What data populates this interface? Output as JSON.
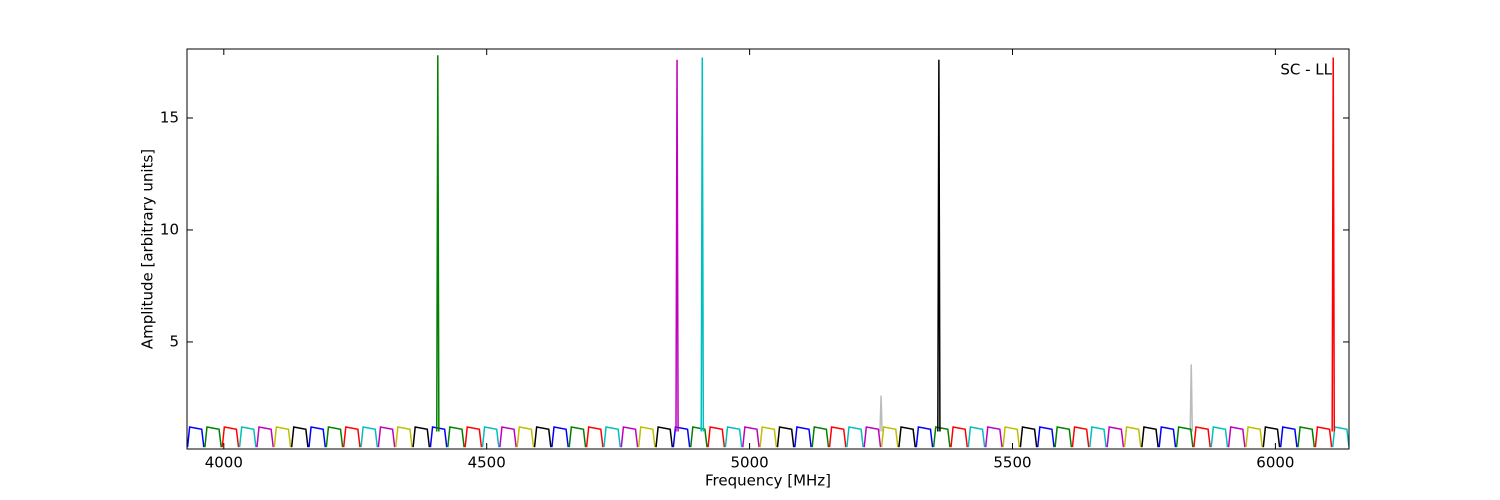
{
  "chart_data": {
    "type": "line",
    "xlabel": "Frequency [MHz]",
    "ylabel": "Amplitude [arbitrary units]",
    "annotation": "SC - LL",
    "xlim": [
      3930,
      6140
    ],
    "ylim": [
      0.22,
      18.08
    ],
    "xticks": [
      4000,
      4500,
      5000,
      5500,
      6000
    ],
    "yticks": [
      5,
      10,
      15
    ],
    "grid": false,
    "series": [
      {
        "color": "#bbbbbb",
        "x": [
          5248,
          5250,
          5252,
          5253,
          5838,
          5840,
          5842
        ],
        "values": [
          1.0,
          2.6,
          1.0,
          null,
          1.0,
          4.0,
          1.0
        ]
      },
      {
        "color": "#0000ff",
        "x": [
          3931,
          3935,
          3958,
          3962,
          3963,
          4162,
          4166,
          4189,
          4193,
          4194,
          4393,
          4397,
          4420,
          4424,
          4425,
          4624,
          4628,
          4651,
          4655,
          4656,
          4855,
          4859,
          4882,
          4886,
          4887,
          5086,
          5090,
          5113,
          5117,
          5118,
          5317,
          5321,
          5344,
          5348,
          5349,
          5548,
          5552,
          5575,
          5579,
          5580,
          5779,
          5783,
          5806,
          5810,
          5811,
          6010,
          6014,
          6037,
          6041
        ],
        "values": [
          0.3,
          1.2,
          1.1,
          0.3,
          null,
          0.3,
          1.2,
          1.1,
          0.3,
          null,
          0.3,
          1.2,
          1.1,
          0.3,
          null,
          0.3,
          1.2,
          1.1,
          0.3,
          null,
          0.3,
          1.2,
          1.1,
          0.3,
          null,
          0.3,
          1.2,
          1.1,
          0.3,
          null,
          0.3,
          1.2,
          1.1,
          0.3,
          null,
          0.3,
          1.2,
          1.1,
          0.3,
          null,
          0.3,
          1.2,
          1.1,
          0.3,
          null,
          0.3,
          1.2,
          1.1,
          0.3
        ]
      },
      {
        "color": "#008000",
        "x": [
          3964,
          3968,
          3991,
          3995,
          3996,
          4195,
          4199,
          4222,
          4226,
          4227,
          4426,
          4430,
          4453,
          4457,
          4458,
          4657,
          4661,
          4684,
          4688,
          4689,
          4888,
          4892,
          4915,
          4919,
          4920,
          5119,
          5123,
          5146,
          5150,
          5151,
          5350,
          5354,
          5377,
          5381,
          5382,
          5581,
          5585,
          5608,
          5612,
          5613,
          5812,
          5816,
          5839,
          5843,
          5844,
          6043,
          6047,
          6070,
          6074
        ],
        "values": [
          0.3,
          1.2,
          1.1,
          0.3,
          null,
          0.3,
          1.2,
          1.1,
          0.3,
          null,
          0.3,
          1.2,
          1.1,
          0.3,
          null,
          0.3,
          1.2,
          1.1,
          0.3,
          null,
          0.3,
          1.2,
          1.1,
          0.3,
          null,
          0.3,
          1.2,
          1.1,
          0.3,
          null,
          0.3,
          1.2,
          1.1,
          0.3,
          null,
          0.3,
          1.2,
          1.1,
          0.3,
          null,
          0.3,
          1.2,
          1.1,
          0.3,
          null,
          0.3,
          1.2,
          1.1,
          0.3
        ]
      },
      {
        "color": "#ff0000",
        "x": [
          3997,
          4001,
          4024,
          4028,
          4029,
          4228,
          4232,
          4255,
          4259,
          4260,
          4459,
          4463,
          4486,
          4490,
          4491,
          4690,
          4694,
          4717,
          4721,
          4722,
          4921,
          4925,
          4948,
          4952,
          4953,
          5152,
          5156,
          5179,
          5183,
          5184,
          5383,
          5387,
          5410,
          5414,
          5415,
          5614,
          5618,
          5641,
          5645,
          5646,
          5845,
          5849,
          5872,
          5876,
          5877,
          6076,
          6080,
          6103,
          6107
        ],
        "values": [
          0.3,
          1.2,
          1.1,
          0.3,
          null,
          0.3,
          1.2,
          1.1,
          0.3,
          null,
          0.3,
          1.2,
          1.1,
          0.3,
          null,
          0.3,
          1.2,
          1.1,
          0.3,
          null,
          0.3,
          1.2,
          1.1,
          0.3,
          null,
          0.3,
          1.2,
          1.1,
          0.3,
          null,
          0.3,
          1.2,
          1.1,
          0.3,
          null,
          0.3,
          1.2,
          1.1,
          0.3,
          null,
          0.3,
          1.2,
          1.1,
          0.3,
          null,
          0.3,
          1.2,
          1.1,
          0.3
        ]
      },
      {
        "color": "#00bfbf",
        "x": [
          4030,
          4034,
          4057,
          4061,
          4062,
          4261,
          4265,
          4288,
          4292,
          4293,
          4492,
          4496,
          4519,
          4523,
          4524,
          4723,
          4727,
          4750,
          4754,
          4755,
          4954,
          4958,
          4981,
          4985,
          4986,
          5185,
          5189,
          5212,
          5216,
          5217,
          5416,
          5420,
          5443,
          5447,
          5448,
          5647,
          5651,
          5674,
          5678,
          5679,
          5878,
          5882,
          5905,
          5909,
          5910,
          6109,
          6113,
          6136,
          6140
        ],
        "values": [
          0.3,
          1.2,
          1.1,
          0.3,
          null,
          0.3,
          1.2,
          1.1,
          0.3,
          null,
          0.3,
          1.2,
          1.1,
          0.3,
          null,
          0.3,
          1.2,
          1.1,
          0.3,
          null,
          0.3,
          1.2,
          1.1,
          0.3,
          null,
          0.3,
          1.2,
          1.1,
          0.3,
          null,
          0.3,
          1.2,
          1.1,
          0.3,
          null,
          0.3,
          1.2,
          1.1,
          0.3,
          null,
          0.3,
          1.2,
          1.1,
          0.3,
          null,
          0.3,
          1.2,
          1.1,
          0.3
        ]
      },
      {
        "color": "#bf00bf",
        "x": [
          4063,
          4067,
          4090,
          4094,
          4095,
          4294,
          4298,
          4321,
          4325,
          4326,
          4525,
          4529,
          4552,
          4556,
          4557,
          4756,
          4760,
          4783,
          4787,
          4788,
          4987,
          4991,
          5014,
          5018,
          5019,
          5218,
          5222,
          5245,
          5249,
          5250,
          5449,
          5453,
          5476,
          5480,
          5481,
          5680,
          5684,
          5707,
          5711,
          5712,
          5911,
          5915,
          5938,
          5942
        ],
        "values": [
          0.3,
          1.2,
          1.1,
          0.3,
          null,
          0.3,
          1.2,
          1.1,
          0.3,
          null,
          0.3,
          1.2,
          1.1,
          0.3,
          null,
          0.3,
          1.2,
          1.1,
          0.3,
          null,
          0.3,
          1.2,
          1.1,
          0.3,
          null,
          0.3,
          1.2,
          1.1,
          0.3,
          null,
          0.3,
          1.2,
          1.1,
          0.3,
          null,
          0.3,
          1.2,
          1.1,
          0.3,
          null,
          0.3,
          1.2,
          1.1,
          0.3
        ]
      },
      {
        "color": "#bfbf00",
        "x": [
          4096,
          4100,
          4123,
          4127,
          4128,
          4327,
          4331,
          4354,
          4358,
          4359,
          4558,
          4562,
          4585,
          4589,
          4590,
          4789,
          4793,
          4816,
          4820,
          4821,
          5020,
          5024,
          5047,
          5051,
          5052,
          5251,
          5255,
          5278,
          5282,
          5283,
          5482,
          5486,
          5509,
          5513,
          5514,
          5713,
          5717,
          5740,
          5744,
          5745,
          5944,
          5948,
          5971,
          5975
        ],
        "values": [
          0.3,
          1.2,
          1.1,
          0.3,
          null,
          0.3,
          1.2,
          1.1,
          0.3,
          null,
          0.3,
          1.2,
          1.1,
          0.3,
          null,
          0.3,
          1.2,
          1.1,
          0.3,
          null,
          0.3,
          1.2,
          1.1,
          0.3,
          null,
          0.3,
          1.2,
          1.1,
          0.3,
          null,
          0.3,
          1.2,
          1.1,
          0.3,
          null,
          0.3,
          1.2,
          1.1,
          0.3,
          null,
          0.3,
          1.2,
          1.1,
          0.3
        ]
      },
      {
        "color": "#000000",
        "x": [
          4129,
          4133,
          4156,
          4160,
          4161,
          4360,
          4364,
          4387,
          4391,
          4392,
          4591,
          4595,
          4618,
          4622,
          4623,
          4822,
          4826,
          4849,
          4853,
          4854,
          5053,
          5057,
          5080,
          5084,
          5085,
          5284,
          5288,
          5311,
          5315,
          5316,
          5515,
          5519,
          5542,
          5546,
          5547,
          5746,
          5750,
          5773,
          5777,
          5778,
          5977,
          5981,
          6004,
          6008
        ],
        "values": [
          0.3,
          1.2,
          1.1,
          0.3,
          null,
          0.3,
          1.2,
          1.1,
          0.3,
          null,
          0.3,
          1.2,
          1.1,
          0.3,
          null,
          0.3,
          1.2,
          1.1,
          0.3,
          null,
          0.3,
          1.2,
          1.1,
          0.3,
          null,
          0.3,
          1.2,
          1.1,
          0.3,
          null,
          0.3,
          1.2,
          1.1,
          0.3,
          null,
          0.3,
          1.2,
          1.1,
          0.3,
          null,
          0.3,
          1.2,
          1.1,
          0.3
        ]
      },
      {
        "color": "#008000",
        "x": [
          4405,
          4407,
          4409
        ],
        "values": [
          1.0,
          17.8,
          1.0
        ]
      },
      {
        "color": "#bf00bf",
        "x": [
          4860,
          4862,
          4864
        ],
        "values": [
          1.0,
          17.6,
          1.0
        ]
      },
      {
        "color": "#00bfbf",
        "x": [
          4908,
          4910,
          4912
        ],
        "values": [
          1.0,
          17.7,
          1.0
        ]
      },
      {
        "color": "#000000",
        "x": [
          5358,
          5360,
          5362
        ],
        "values": [
          1.0,
          17.6,
          1.0
        ]
      },
      {
        "color": "#ff0000",
        "x": [
          6108,
          6110,
          6112
        ],
        "values": [
          1.0,
          17.7,
          1.0
        ]
      }
    ]
  }
}
